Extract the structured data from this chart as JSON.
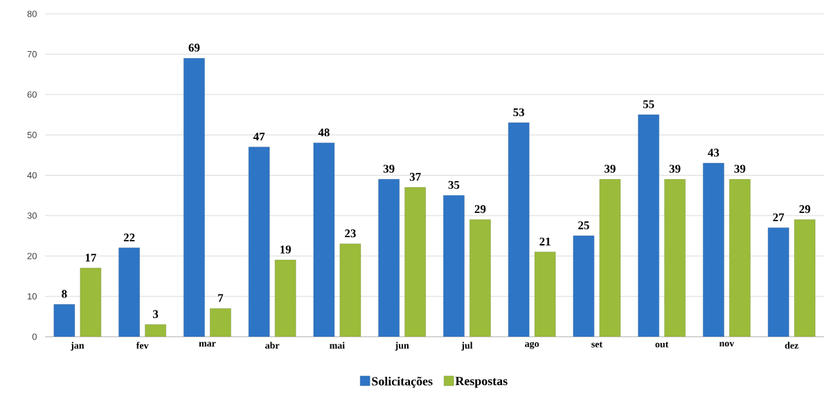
{
  "chart_data": {
    "type": "bar",
    "categories": [
      "jan",
      "fev",
      "mar",
      "abr",
      "mai",
      "jun",
      "jul",
      "ago",
      "set",
      "out",
      "nov",
      "dez"
    ],
    "series": [
      {
        "name": "Solicitações",
        "color": "#2e75c6",
        "values": [
          8,
          22,
          69,
          47,
          48,
          39,
          35,
          53,
          25,
          55,
          43,
          27
        ]
      },
      {
        "name": "Respostas",
        "color": "#9bbb3b",
        "values": [
          17,
          3,
          7,
          19,
          23,
          37,
          29,
          21,
          39,
          39,
          39,
          29
        ]
      }
    ],
    "ylim": [
      0,
      80
    ],
    "yticks": [
      0,
      10,
      20,
      30,
      40,
      50,
      60,
      70,
      80
    ],
    "grid": "y",
    "legend": "bottom",
    "data_labels": true
  }
}
